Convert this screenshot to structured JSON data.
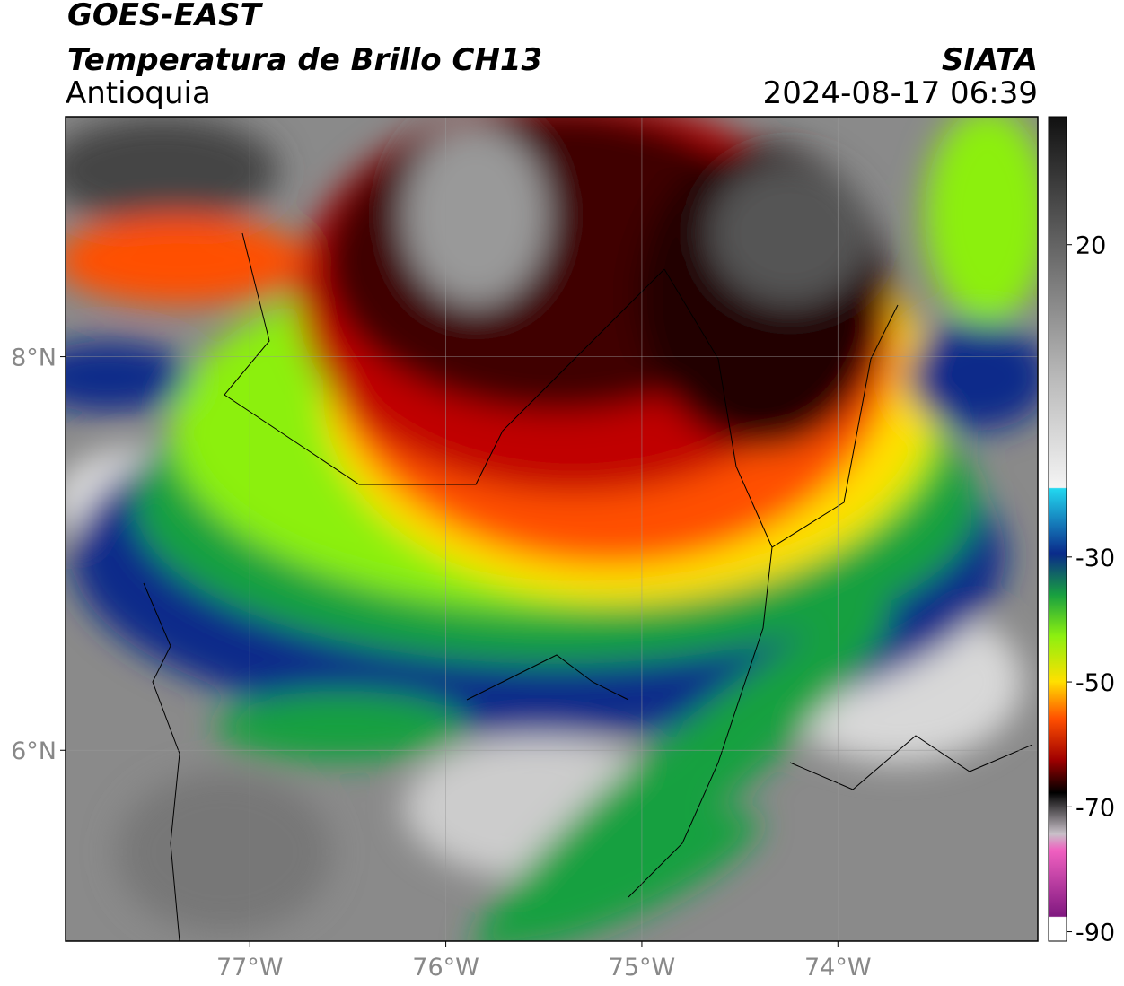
{
  "header": {
    "satellite": "GOES-EAST",
    "product": "Temperatura de Brillo CH13",
    "region": "Antioquia",
    "source": "SIATA",
    "datetime": "2024-08-17 06:39"
  },
  "map": {
    "xlim": [
      -77.94,
      -72.98
    ],
    "ylim": [
      5.03,
      9.22
    ],
    "xticks": [
      {
        "value": -77,
        "label": "77°W"
      },
      {
        "value": -76,
        "label": "76°W"
      },
      {
        "value": -75,
        "label": "75°W"
      },
      {
        "value": -74,
        "label": "74°W"
      }
    ],
    "yticks": [
      {
        "value": 8,
        "label": "8°N"
      },
      {
        "value": 6,
        "label": "6°N"
      }
    ]
  },
  "colorbar": {
    "lim": [
      -91.5,
      40.5
    ],
    "ticks": [
      20,
      -30,
      -50,
      -70,
      -90
    ]
  }
}
